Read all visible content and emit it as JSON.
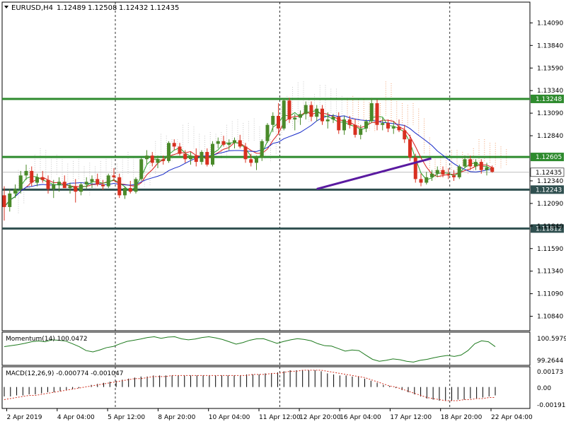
{
  "chart_data": [
    {
      "type": "candlestick",
      "header": {
        "symbol": "EURUSD,H4",
        "open": "1.12489",
        "high": "1.12508",
        "low": "1.12432",
        "close": "1.12435"
      },
      "ylim": [
        1.1068,
        1.1432
      ],
      "y_ticks": [
        "1.14090",
        "1.13840",
        "1.13590",
        "1.13340",
        "1.13090",
        "1.12840",
        "1.12340",
        "1.12090",
        "1.11840",
        "1.11590",
        "1.11340",
        "1.11090",
        "1.10840"
      ],
      "horizontal_levels": [
        {
          "value": 1.13248,
          "label": "1.13248",
          "color": "#2e8b2e"
        },
        {
          "value": 1.12605,
          "label": "1.12605",
          "color": "#2e8b2e"
        },
        {
          "value": 1.12243,
          "label": "1.12243",
          "color": "#2f4f4f"
        },
        {
          "value": 1.11812,
          "label": "1.11812",
          "color": "#2f4f4f"
        }
      ],
      "price_marker": {
        "value": 1.12435,
        "label": "1.12435"
      },
      "trendline": {
        "from": {
          "i": 57,
          "y": 1.1225
        },
        "to": {
          "i": 74,
          "y": 1.12565
        },
        "color": "#5a1aa0"
      },
      "colors": {
        "up": "#4a8a2a",
        "down": "#d83020",
        "ma_fast": "#2aa02a",
        "ma_red": "#d81e1e",
        "ma_blue": "#1428c8",
        "ichimoku_cloud": "#f0a070",
        "ichimoku_cloud2": "#b4b4b4"
      },
      "candles": [
        [
          1.1218,
          1.1228,
          1.119,
          1.1205
        ],
        [
          1.1205,
          1.1225,
          1.12,
          1.122
        ],
        [
          1.122,
          1.123,
          1.1215,
          1.1225
        ],
        [
          1.1225,
          1.1245,
          1.122,
          1.124
        ],
        [
          1.124,
          1.1252,
          1.1235,
          1.1245
        ],
        [
          1.1245,
          1.125,
          1.1228,
          1.1232
        ],
        [
          1.1232,
          1.1242,
          1.1228,
          1.1238
        ],
        [
          1.1238,
          1.1245,
          1.1232,
          1.1235
        ],
        [
          1.1235,
          1.124,
          1.122,
          1.1225
        ],
        [
          1.1225,
          1.1235,
          1.1215,
          1.123
        ],
        [
          1.123,
          1.1238,
          1.1222,
          1.1233
        ],
        [
          1.1233,
          1.124,
          1.1228,
          1.1226
        ],
        [
          1.1226,
          1.1232,
          1.122,
          1.1228
        ],
        [
          1.1228,
          1.1236,
          1.121,
          1.1222
        ],
        [
          1.1222,
          1.1232,
          1.1218,
          1.123
        ],
        [
          1.123,
          1.1238,
          1.1225,
          1.1233
        ],
        [
          1.1233,
          1.124,
          1.1226,
          1.1236
        ],
        [
          1.1236,
          1.1242,
          1.1228,
          1.123
        ],
        [
          1.123,
          1.1235,
          1.1224,
          1.1228
        ],
        [
          1.1228,
          1.1242,
          1.1226,
          1.124
        ],
        [
          1.124,
          1.1248,
          1.1234,
          1.1238
        ],
        [
          1.1238,
          1.1242,
          1.1215,
          1.1218
        ],
        [
          1.1218,
          1.1228,
          1.1214,
          1.1226
        ],
        [
          1.1226,
          1.1234,
          1.122,
          1.1222
        ],
        [
          1.1222,
          1.1238,
          1.122,
          1.1236
        ],
        [
          1.1236,
          1.126,
          1.1234,
          1.1258
        ],
        [
          1.1258,
          1.1268,
          1.1252,
          1.1262
        ],
        [
          1.1262,
          1.1266,
          1.125,
          1.1254
        ],
        [
          1.1254,
          1.1262,
          1.1248,
          1.1258
        ],
        [
          1.1258,
          1.1262,
          1.1252,
          1.1256
        ],
        [
          1.1256,
          1.1278,
          1.1254,
          1.1276
        ],
        [
          1.1276,
          1.128,
          1.1268,
          1.1272
        ],
        [
          1.1272,
          1.1276,
          1.1262,
          1.1264
        ],
        [
          1.1264,
          1.1268,
          1.1254,
          1.1258
        ],
        [
          1.1258,
          1.1266,
          1.1252,
          1.1262
        ],
        [
          1.1262,
          1.127,
          1.125,
          1.1255
        ],
        [
          1.1255,
          1.1268,
          1.1252,
          1.1266
        ],
        [
          1.1266,
          1.127,
          1.125,
          1.1252
        ],
        [
          1.1252,
          1.1278,
          1.125,
          1.1275
        ],
        [
          1.1275,
          1.1282,
          1.127,
          1.1278
        ],
        [
          1.1278,
          1.1284,
          1.1272,
          1.1274
        ],
        [
          1.1274,
          1.128,
          1.1268,
          1.1276
        ],
        [
          1.1276,
          1.1282,
          1.127,
          1.1279
        ],
        [
          1.1279,
          1.1285,
          1.127,
          1.1272
        ],
        [
          1.1272,
          1.1276,
          1.1254,
          1.1258
        ],
        [
          1.1258,
          1.1264,
          1.125,
          1.1254
        ],
        [
          1.1254,
          1.1262,
          1.1246,
          1.126
        ],
        [
          1.126,
          1.128,
          1.1256,
          1.1278
        ],
        [
          1.1278,
          1.1298,
          1.1276,
          1.1296
        ],
        [
          1.1296,
          1.131,
          1.1288,
          1.1306
        ],
        [
          1.1306,
          1.132,
          1.1285,
          1.1292
        ],
        [
          1.1292,
          1.1325,
          1.129,
          1.1323
        ],
        [
          1.1323,
          1.1326,
          1.1298,
          1.1302
        ],
        [
          1.1302,
          1.1308,
          1.129,
          1.1304
        ],
        [
          1.1304,
          1.1312,
          1.1296,
          1.1308
        ],
        [
          1.1308,
          1.1322,
          1.1302,
          1.1318
        ],
        [
          1.1318,
          1.1322,
          1.13,
          1.1305
        ],
        [
          1.1305,
          1.1318,
          1.13,
          1.1314
        ],
        [
          1.1314,
          1.1318,
          1.1296,
          1.13
        ],
        [
          1.13,
          1.131,
          1.1292,
          1.1302
        ],
        [
          1.1302,
          1.1308,
          1.1298,
          1.1305
        ],
        [
          1.1305,
          1.131,
          1.1286,
          1.129
        ],
        [
          1.129,
          1.1306,
          1.1285,
          1.1302
        ],
        [
          1.1302,
          1.1306,
          1.1292,
          1.1296
        ],
        [
          1.1296,
          1.1303,
          1.1282,
          1.1285
        ],
        [
          1.1285,
          1.1296,
          1.128,
          1.1292
        ],
        [
          1.1292,
          1.1302,
          1.1288,
          1.13
        ],
        [
          1.13,
          1.1326,
          1.1298,
          1.132
        ],
        [
          1.132,
          1.1324,
          1.129,
          1.1296
        ],
        [
          1.1296,
          1.1304,
          1.129,
          1.1298
        ],
        [
          1.1298,
          1.1302,
          1.1288,
          1.1292
        ],
        [
          1.1292,
          1.13,
          1.1286,
          1.1294
        ],
        [
          1.1294,
          1.1302,
          1.1288,
          1.129
        ],
        [
          1.129,
          1.1296,
          1.1276,
          1.128
        ],
        [
          1.128,
          1.1285,
          1.1256,
          1.126
        ],
        [
          1.126,
          1.1264,
          1.1232,
          1.1236
        ],
        [
          1.1236,
          1.1242,
          1.1228,
          1.1232
        ],
        [
          1.1232,
          1.1244,
          1.123,
          1.1238
        ],
        [
          1.1238,
          1.1246,
          1.1234,
          1.1242
        ],
        [
          1.1242,
          1.125,
          1.1238,
          1.1246
        ],
        [
          1.1246,
          1.125,
          1.1238,
          1.1241
        ],
        [
          1.1241,
          1.1248,
          1.1236,
          1.124
        ],
        [
          1.124,
          1.1246,
          1.1234,
          1.1238
        ],
        [
          1.1238,
          1.1252,
          1.1236,
          1.125
        ],
        [
          1.125,
          1.1262,
          1.1248,
          1.1258
        ],
        [
          1.1258,
          1.1262,
          1.1246,
          1.125
        ],
        [
          1.125,
          1.1258,
          1.1246,
          1.1255
        ],
        [
          1.1255,
          1.1258,
          1.1242,
          1.1246
        ],
        [
          1.1246,
          1.1254,
          1.124,
          1.1249
        ],
        [
          1.1249,
          1.1251,
          1.1243,
          1.1244
        ]
      ]
    },
    {
      "type": "line",
      "label": "Momentum(14) 100.0472",
      "y_ticks": [
        "100.5979",
        "99.2644"
      ],
      "series": [
        {
          "values": [
            100.05,
            100.1,
            100.15,
            100.22,
            100.3,
            100.34,
            100.3,
            100.4,
            100.38,
            100.34,
            100.2,
            100.05,
            99.85,
            99.78,
            99.88,
            100.0,
            100.06,
            100.2,
            100.32,
            100.38,
            100.44,
            100.52,
            100.56,
            100.48,
            100.54,
            100.56,
            100.45,
            100.4,
            100.44,
            100.52,
            100.56,
            100.5,
            100.42,
            100.3,
            100.18,
            100.26,
            100.38,
            100.45,
            100.46,
            100.34,
            100.22,
            100.32,
            100.4,
            100.46,
            100.42,
            100.35,
            100.2,
            100.1,
            100.08,
            99.95,
            99.82,
            99.88,
            99.85,
            99.62,
            99.4,
            99.3,
            99.35,
            99.42,
            99.38,
            99.3,
            99.26,
            99.35,
            99.4,
            99.48,
            99.55,
            99.6,
            99.55,
            99.62,
            99.85,
            100.2,
            100.35,
            100.3,
            100.05
          ]
        }
      ]
    },
    {
      "type": "bar",
      "label": "MACD(12,26,9) -0.000774 -0.001047",
      "y_ticks": [
        "0.00173",
        "0.00",
        "-0.00191"
      ],
      "series": [
        {
          "values": [
            -0.0009,
            -0.0009,
            -0.0008,
            -0.0008,
            -0.0007,
            -0.0007,
            -0.0006,
            -0.0005,
            -0.0005,
            -0.0004,
            -0.0003,
            -0.0002,
            -0.0001,
            0.0,
            0.0002,
            0.0003,
            0.0004,
            0.0005,
            0.0006,
            0.0007,
            0.0008,
            0.0009,
            0.001,
            0.001,
            0.0011,
            0.0011,
            0.0011,
            0.0011,
            0.0011,
            0.0011,
            0.0011,
            0.0011,
            0.0011,
            0.0011,
            0.0011,
            0.0011,
            0.0011,
            0.0011,
            0.0011,
            0.0012,
            0.0012,
            0.0012,
            0.0013,
            0.0013,
            0.0014,
            0.0015,
            0.0016,
            0.0016,
            0.0016,
            0.0016,
            0.0016,
            0.0015,
            0.0013,
            0.0012,
            0.0011,
            0.0011,
            0.001,
            0.001,
            0.0008,
            0.0006,
            0.0004,
            0.0002,
            0.0001,
            -0.0001,
            -0.0003,
            -0.0005,
            -0.0007,
            -0.0009,
            -0.0011,
            -0.0012,
            -0.0013,
            -0.0013,
            -0.0013,
            -0.0012,
            -0.0012,
            -0.0011,
            -0.0011,
            -0.001,
            -0.0009,
            -0.0008
          ]
        },
        {
          "values": [
            -0.0012,
            -0.0011,
            -0.001,
            -0.0009,
            -0.0008,
            -0.0008,
            -0.0007,
            -0.0006,
            -0.0005,
            -0.0004,
            -0.0003,
            -0.0002,
            -0.0001,
            0.0,
            0.0001,
            0.0002,
            0.0003,
            0.0004,
            0.0005,
            0.0006,
            0.0007,
            0.0008,
            0.0008,
            0.0009,
            0.001,
            0.001,
            0.001,
            0.0011,
            0.0011,
            0.0011,
            0.0011,
            0.0011,
            0.0011,
            0.0011,
            0.0011,
            0.0011,
            0.0011,
            0.0011,
            0.0011,
            0.0011,
            0.0012,
            0.0012,
            0.0012,
            0.0013,
            0.0013,
            0.0014,
            0.0015,
            0.0015,
            0.0016,
            0.0016,
            0.0016,
            0.0016,
            0.0015,
            0.0014,
            0.0013,
            0.0012,
            0.0011,
            0.001,
            0.0009,
            0.0007,
            0.0005,
            0.0003,
            0.0001,
            0.0,
            -0.0002,
            -0.0004,
            -0.0006,
            -0.0008,
            -0.001,
            -0.0011,
            -0.0012,
            -0.0013,
            -0.0013,
            -0.0013,
            -0.0012,
            -0.0012,
            -0.0011,
            -0.0011,
            -0.001,
            -0.001
          ]
        }
      ]
    }
  ],
  "x_ticks": [
    {
      "label": "2 Apr 2019",
      "i": 0
    },
    {
      "label": "4 Apr 04:00",
      "i": 10
    },
    {
      "label": "5 Apr 12:00",
      "i": 20
    },
    {
      "label": "8 Apr 20:00",
      "i": 30
    },
    {
      "label": "10 Apr 04:00",
      "i": 40
    },
    {
      "label": "11 Apr 12:00",
      "i": 50
    },
    {
      "label": "12 Apr 20:00",
      "i": 58
    },
    {
      "label": "16 Apr 04:00",
      "i": 66
    },
    {
      "label": "17 Apr 12:00",
      "i": 76
    },
    {
      "label": "18 Apr 20:00",
      "i": 86
    },
    {
      "label": "22 Apr 04:00",
      "i": 96
    }
  ]
}
